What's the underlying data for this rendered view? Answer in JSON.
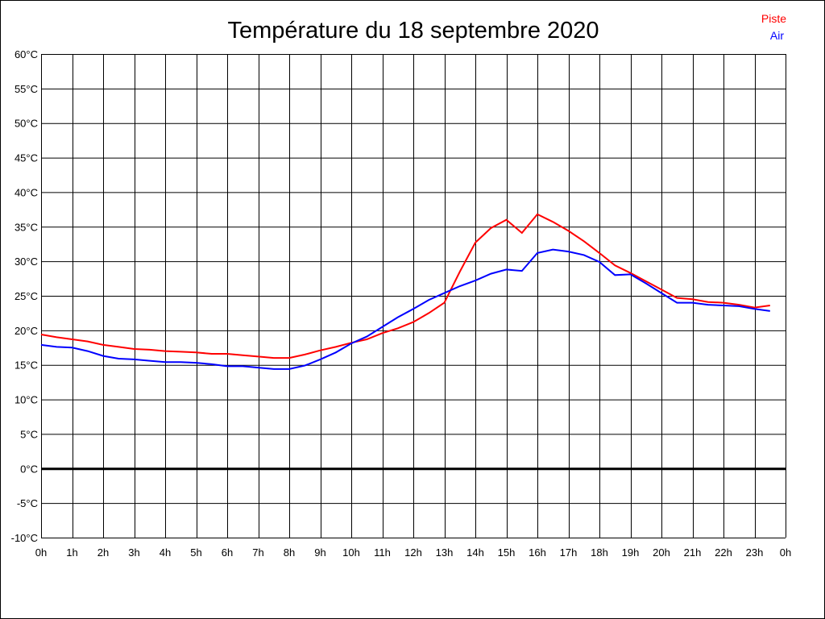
{
  "chart_data": {
    "type": "line",
    "title": "Température du 18 septembre 2020",
    "xlabel": "",
    "ylabel": "",
    "ylim": [
      -10,
      60
    ],
    "xlim": [
      0,
      24
    ],
    "grid": true,
    "legend": "top-right",
    "x_tick_labels": [
      "0h",
      "1h",
      "2h",
      "3h",
      "4h",
      "5h",
      "6h",
      "7h",
      "8h",
      "9h",
      "10h",
      "11h",
      "12h",
      "13h",
      "14h",
      "15h",
      "16h",
      "17h",
      "18h",
      "19h",
      "20h",
      "21h",
      "22h",
      "23h",
      "0h"
    ],
    "y_tick_labels": [
      "60°C",
      "55°C",
      "50°C",
      "45°C",
      "40°C",
      "35°C",
      "30°C",
      "25°C",
      "20°C",
      "15°C",
      "10°C",
      "5°C",
      "0°C",
      "-5°C",
      "-10°C"
    ],
    "y_ticks": [
      60,
      55,
      50,
      45,
      40,
      35,
      30,
      25,
      20,
      15,
      10,
      5,
      0,
      -5,
      -10
    ],
    "x": [
      0,
      0.5,
      1,
      1.5,
      2,
      2.5,
      3,
      3.5,
      4,
      4.5,
      5,
      5.5,
      6,
      6.5,
      7,
      7.5,
      8,
      8.5,
      9,
      9.5,
      10,
      10.5,
      11,
      11.5,
      12,
      12.5,
      13,
      13.5,
      14,
      14.5,
      15,
      15.5,
      16,
      16.5,
      17,
      17.5,
      18,
      18.5,
      19,
      19.5,
      20,
      20.5,
      21,
      21.5,
      22,
      22.5,
      23,
      23.5
    ],
    "series": [
      {
        "name": "Piste",
        "color": "#ff0000",
        "values": [
          19.4,
          19.0,
          18.7,
          18.4,
          17.9,
          17.6,
          17.3,
          17.2,
          17.0,
          16.9,
          16.8,
          16.6,
          16.6,
          16.4,
          16.2,
          16.0,
          16.0,
          16.5,
          17.1,
          17.6,
          18.2,
          18.7,
          19.6,
          20.3,
          21.2,
          22.5,
          24.0,
          28.5,
          32.7,
          34.8,
          36.0,
          34.1,
          36.8,
          35.7,
          34.4,
          32.9,
          31.2,
          29.4,
          28.3,
          27.1,
          25.9,
          24.7,
          24.5,
          24.1,
          24.0,
          23.7,
          23.3,
          23.6
        ]
      },
      {
        "name": "Air",
        "color": "#0000ff",
        "values": [
          17.9,
          17.6,
          17.5,
          17.0,
          16.3,
          15.9,
          15.8,
          15.6,
          15.4,
          15.4,
          15.3,
          15.1,
          14.8,
          14.8,
          14.6,
          14.4,
          14.4,
          14.9,
          15.8,
          16.8,
          18.1,
          19.1,
          20.5,
          21.9,
          23.1,
          24.4,
          25.4,
          26.4,
          27.2,
          28.2,
          28.8,
          28.6,
          31.2,
          31.7,
          31.4,
          30.9,
          29.9,
          28.0,
          28.1,
          26.8,
          25.4,
          24.0,
          24.0,
          23.7,
          23.6,
          23.5,
          23.1,
          22.8
        ]
      }
    ]
  }
}
